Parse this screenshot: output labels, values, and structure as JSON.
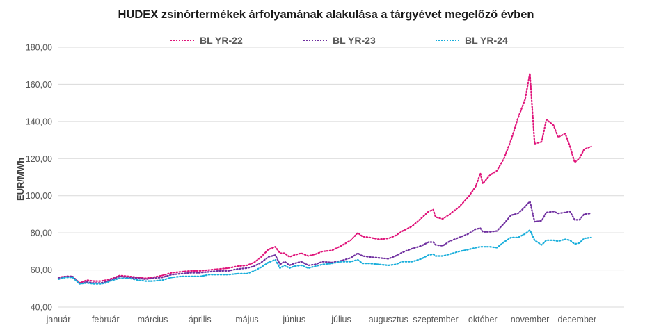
{
  "chart_data": {
    "type": "line",
    "title": "HUDEX zsinórtermékek árfolyamának alakulása a tárgyévet megelőző évben",
    "xlabel": "",
    "ylabel": "EUR/MWh",
    "ylim": [
      40,
      180
    ],
    "yticks": [
      "40,00",
      "60,00",
      "80,00",
      "100,00",
      "120,00",
      "140,00",
      "160,00",
      "180,00"
    ],
    "ytick_values": [
      40,
      60,
      80,
      100,
      120,
      140,
      160,
      180
    ],
    "categories": [
      "január",
      "február",
      "március",
      "április",
      "május",
      "június",
      "július",
      "augusztus",
      "szeptember",
      "október",
      "november",
      "december"
    ],
    "grid": "horizontal",
    "legend_position": "top",
    "x_unit": "month index (0 = január, 11 = december)",
    "series": [
      {
        "name": "BL YR-22",
        "color": "#e0147a",
        "points": [
          [
            0.0,
            56.0
          ],
          [
            0.15,
            56.5
          ],
          [
            0.3,
            56.5
          ],
          [
            0.45,
            53.0
          ],
          [
            0.6,
            54.5
          ],
          [
            0.75,
            54.0
          ],
          [
            0.9,
            54.0
          ],
          [
            1.0,
            54.5
          ],
          [
            1.15,
            55.5
          ],
          [
            1.3,
            57.0
          ],
          [
            1.5,
            56.5
          ],
          [
            1.7,
            56.0
          ],
          [
            1.85,
            55.5
          ],
          [
            2.0,
            56.0
          ],
          [
            2.2,
            57.0
          ],
          [
            2.4,
            58.5
          ],
          [
            2.6,
            59.0
          ],
          [
            2.8,
            59.5
          ],
          [
            3.0,
            59.5
          ],
          [
            3.2,
            60.0
          ],
          [
            3.4,
            60.5
          ],
          [
            3.6,
            61.0
          ],
          [
            3.8,
            62.0
          ],
          [
            4.0,
            62.5
          ],
          [
            4.15,
            64.0
          ],
          [
            4.3,
            67.0
          ],
          [
            4.45,
            71.0
          ],
          [
            4.6,
            72.5
          ],
          [
            4.7,
            69.0
          ],
          [
            4.8,
            69.0
          ],
          [
            4.9,
            67.0
          ],
          [
            5.0,
            68.0
          ],
          [
            5.15,
            69.0
          ],
          [
            5.3,
            67.5
          ],
          [
            5.45,
            68.5
          ],
          [
            5.6,
            70.0
          ],
          [
            5.8,
            70.5
          ],
          [
            6.0,
            73.0
          ],
          [
            6.2,
            76.0
          ],
          [
            6.35,
            80.0
          ],
          [
            6.45,
            78.0
          ],
          [
            6.6,
            77.5
          ],
          [
            6.8,
            76.5
          ],
          [
            7.0,
            77.0
          ],
          [
            7.15,
            78.5
          ],
          [
            7.3,
            81.0
          ],
          [
            7.5,
            83.5
          ],
          [
            7.7,
            88.0
          ],
          [
            7.85,
            91.5
          ],
          [
            7.95,
            92.5
          ],
          [
            8.0,
            88.5
          ],
          [
            8.15,
            87.5
          ],
          [
            8.3,
            90.0
          ],
          [
            8.5,
            94.0
          ],
          [
            8.7,
            99.5
          ],
          [
            8.85,
            105.0
          ],
          [
            8.95,
            112.0
          ],
          [
            9.0,
            106.5
          ],
          [
            9.15,
            111.0
          ],
          [
            9.3,
            113.5
          ],
          [
            9.45,
            120.0
          ],
          [
            9.6,
            130.0
          ],
          [
            9.75,
            142.0
          ],
          [
            9.9,
            152.0
          ],
          [
            10.0,
            166.0
          ],
          [
            10.1,
            128.0
          ],
          [
            10.25,
            129.0
          ],
          [
            10.35,
            141.0
          ],
          [
            10.5,
            138.0
          ],
          [
            10.6,
            131.5
          ],
          [
            10.75,
            133.5
          ],
          [
            10.85,
            126.5
          ],
          [
            10.95,
            118.0
          ],
          [
            11.05,
            120.0
          ],
          [
            11.15,
            125.0
          ],
          [
            11.3,
            126.5
          ]
        ]
      },
      {
        "name": "BL YR-23",
        "color": "#7030a0",
        "points": [
          [
            0.0,
            55.5
          ],
          [
            0.15,
            56.5
          ],
          [
            0.3,
            56.5
          ],
          [
            0.45,
            52.5
          ],
          [
            0.6,
            53.5
          ],
          [
            0.75,
            53.0
          ],
          [
            0.9,
            53.0
          ],
          [
            1.0,
            53.5
          ],
          [
            1.15,
            55.0
          ],
          [
            1.3,
            56.5
          ],
          [
            1.5,
            56.0
          ],
          [
            1.7,
            55.5
          ],
          [
            1.85,
            55.0
          ],
          [
            2.0,
            55.5
          ],
          [
            2.2,
            56.0
          ],
          [
            2.4,
            57.5
          ],
          [
            2.6,
            58.0
          ],
          [
            2.8,
            58.5
          ],
          [
            3.0,
            58.5
          ],
          [
            3.2,
            59.0
          ],
          [
            3.4,
            59.5
          ],
          [
            3.6,
            59.5
          ],
          [
            3.8,
            60.5
          ],
          [
            4.0,
            61.0
          ],
          [
            4.15,
            62.0
          ],
          [
            4.3,
            64.0
          ],
          [
            4.45,
            67.0
          ],
          [
            4.6,
            68.0
          ],
          [
            4.7,
            63.0
          ],
          [
            4.8,
            64.5
          ],
          [
            4.9,
            62.5
          ],
          [
            5.0,
            63.5
          ],
          [
            5.15,
            64.5
          ],
          [
            5.3,
            62.5
          ],
          [
            5.45,
            63.0
          ],
          [
            5.6,
            64.5
          ],
          [
            5.8,
            64.0
          ],
          [
            6.0,
            65.0
          ],
          [
            6.2,
            66.5
          ],
          [
            6.35,
            69.0
          ],
          [
            6.45,
            67.5
          ],
          [
            6.6,
            67.0
          ],
          [
            6.8,
            66.5
          ],
          [
            7.0,
            66.0
          ],
          [
            7.15,
            67.5
          ],
          [
            7.3,
            69.5
          ],
          [
            7.5,
            71.5
          ],
          [
            7.7,
            73.0
          ],
          [
            7.85,
            75.0
          ],
          [
            7.95,
            75.0
          ],
          [
            8.0,
            73.5
          ],
          [
            8.15,
            73.0
          ],
          [
            8.3,
            75.5
          ],
          [
            8.5,
            77.5
          ],
          [
            8.7,
            79.5
          ],
          [
            8.85,
            82.0
          ],
          [
            8.95,
            82.5
          ],
          [
            9.0,
            80.5
          ],
          [
            9.15,
            80.5
          ],
          [
            9.3,
            81.0
          ],
          [
            9.45,
            85.0
          ],
          [
            9.6,
            89.5
          ],
          [
            9.75,
            90.5
          ],
          [
            9.9,
            94.0
          ],
          [
            10.0,
            97.0
          ],
          [
            10.1,
            86.0
          ],
          [
            10.25,
            86.5
          ],
          [
            10.35,
            91.0
          ],
          [
            10.5,
            91.5
          ],
          [
            10.6,
            90.5
          ],
          [
            10.75,
            91.0
          ],
          [
            10.85,
            91.5
          ],
          [
            10.95,
            87.0
          ],
          [
            11.05,
            87.0
          ],
          [
            11.15,
            90.0
          ],
          [
            11.3,
            90.5
          ]
        ]
      },
      {
        "name": "BL YR-24",
        "color": "#19aedb",
        "points": [
          [
            0.0,
            55.0
          ],
          [
            0.15,
            56.0
          ],
          [
            0.3,
            56.0
          ],
          [
            0.45,
            52.5
          ],
          [
            0.6,
            53.0
          ],
          [
            0.75,
            52.5
          ],
          [
            0.9,
            52.5
          ],
          [
            1.0,
            53.0
          ],
          [
            1.15,
            54.5
          ],
          [
            1.3,
            55.5
          ],
          [
            1.5,
            55.5
          ],
          [
            1.7,
            54.5
          ],
          [
            1.85,
            54.0
          ],
          [
            2.0,
            54.0
          ],
          [
            2.2,
            54.5
          ],
          [
            2.4,
            56.0
          ],
          [
            2.6,
            56.5
          ],
          [
            2.8,
            56.5
          ],
          [
            3.0,
            56.5
          ],
          [
            3.2,
            57.5
          ],
          [
            3.4,
            57.5
          ],
          [
            3.6,
            57.5
          ],
          [
            3.8,
            58.0
          ],
          [
            4.0,
            58.0
          ],
          [
            4.15,
            59.5
          ],
          [
            4.3,
            61.5
          ],
          [
            4.45,
            64.0
          ],
          [
            4.6,
            65.5
          ],
          [
            4.7,
            61.0
          ],
          [
            4.8,
            62.5
          ],
          [
            4.9,
            61.0
          ],
          [
            5.0,
            62.0
          ],
          [
            5.15,
            62.5
          ],
          [
            5.3,
            61.0
          ],
          [
            5.45,
            62.0
          ],
          [
            5.6,
            63.0
          ],
          [
            5.8,
            63.5
          ],
          [
            6.0,
            64.5
          ],
          [
            6.2,
            64.5
          ],
          [
            6.35,
            65.5
          ],
          [
            6.45,
            63.5
          ],
          [
            6.6,
            63.5
          ],
          [
            6.8,
            63.0
          ],
          [
            7.0,
            62.5
          ],
          [
            7.15,
            63.0
          ],
          [
            7.3,
            64.5
          ],
          [
            7.5,
            64.5
          ],
          [
            7.7,
            66.0
          ],
          [
            7.85,
            68.0
          ],
          [
            7.95,
            68.5
          ],
          [
            8.0,
            67.5
          ],
          [
            8.15,
            67.5
          ],
          [
            8.3,
            68.5
          ],
          [
            8.5,
            70.0
          ],
          [
            8.7,
            71.0
          ],
          [
            8.85,
            72.0
          ],
          [
            8.95,
            72.5
          ],
          [
            9.0,
            72.5
          ],
          [
            9.15,
            72.5
          ],
          [
            9.3,
            72.0
          ],
          [
            9.45,
            75.0
          ],
          [
            9.6,
            77.5
          ],
          [
            9.75,
            77.5
          ],
          [
            9.9,
            79.5
          ],
          [
            10.0,
            81.5
          ],
          [
            10.1,
            76.0
          ],
          [
            10.25,
            73.5
          ],
          [
            10.35,
            76.0
          ],
          [
            10.5,
            76.0
          ],
          [
            10.6,
            75.5
          ],
          [
            10.75,
            76.5
          ],
          [
            10.85,
            76.0
          ],
          [
            10.95,
            74.0
          ],
          [
            11.05,
            74.5
          ],
          [
            11.15,
            77.0
          ],
          [
            11.3,
            77.5
          ]
        ]
      }
    ]
  }
}
